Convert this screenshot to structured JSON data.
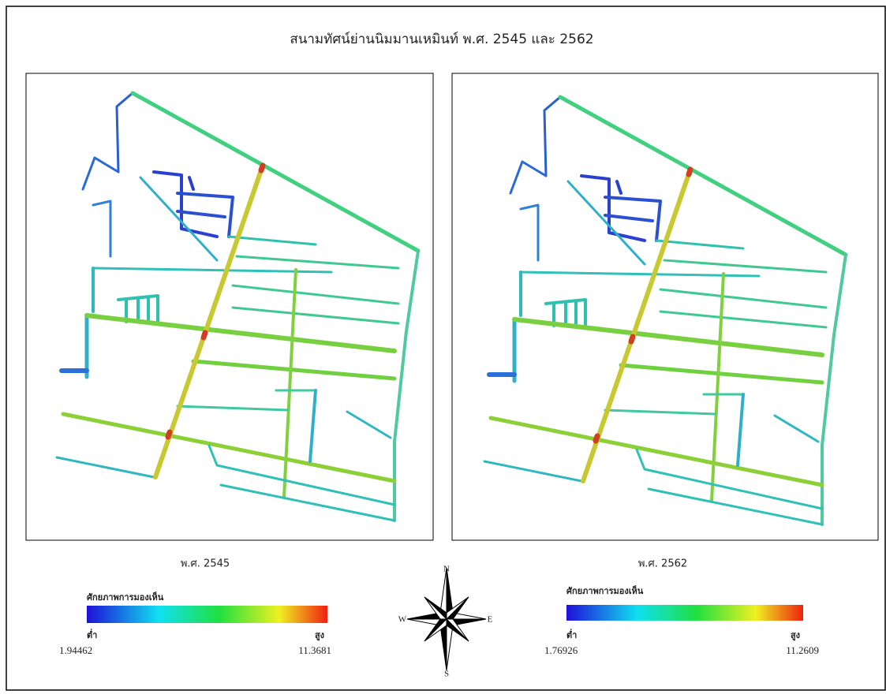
{
  "title": "สนามทัศน์ย่านนิมมานเหมินท์ พ.ศ. 2545 และ 2562",
  "panels": [
    {
      "caption": "พ.ศ. 2545",
      "legend": {
        "title": "ศักยภาพการมองเห็น",
        "low_label": "ต่ำ",
        "high_label": "สูง",
        "min": 1.94462,
        "max": 11.3681
      }
    },
    {
      "caption": "พ.ศ. 2562",
      "legend": {
        "title": "ศักยภาพการมองเห็น",
        "low_label": "ต่ำ",
        "high_label": "สูง",
        "min": 1.76926,
        "max": 11.2609
      }
    }
  ],
  "compass": {
    "north": "N",
    "south": "S",
    "east": "E",
    "west": "W"
  }
}
